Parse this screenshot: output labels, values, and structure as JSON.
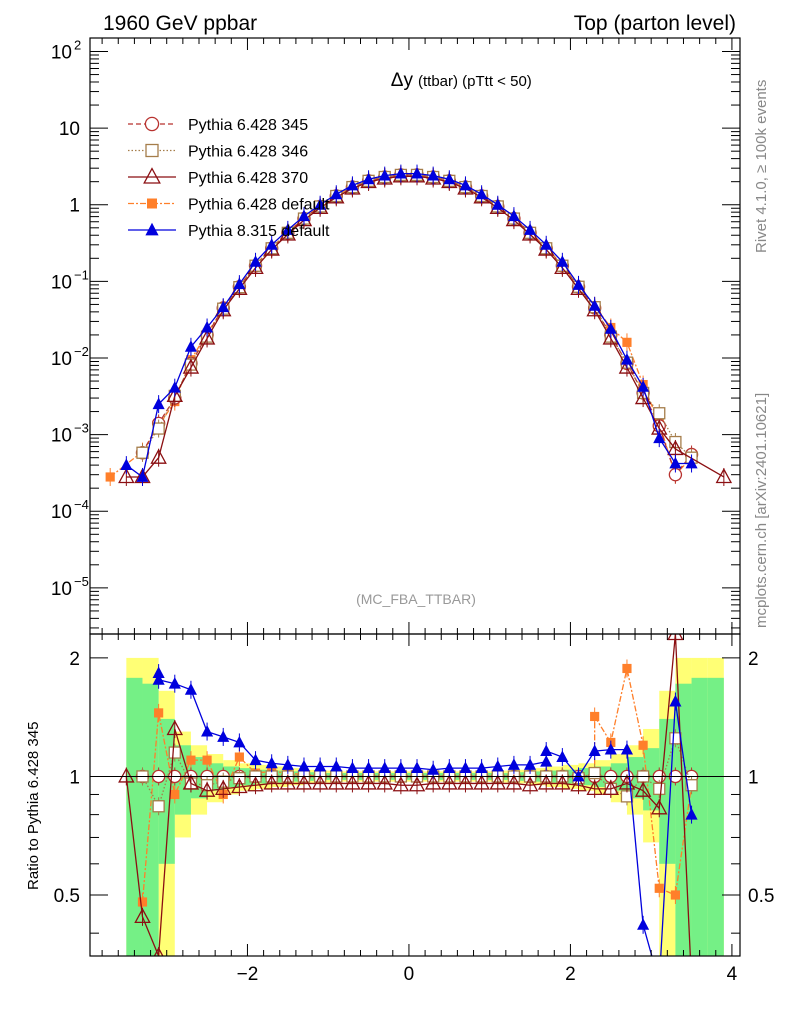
{
  "header": {
    "left_title": "1960 GeV ppbar",
    "right_title": "Top (parton level)"
  },
  "side_labels": {
    "rivet": "Rivet 4.1.0, ≥ 100k events",
    "mcplots": "mcplots.cern.ch [arXiv:2401.10621]"
  },
  "chart_data": {
    "type": "line",
    "title": "Δy (ttbar) (pTtt < 50)",
    "title_main": "Δy",
    "title_sub": "(ttbar) (pTtt < 50)",
    "watermark": "(MC_FBA_TTBAR)",
    "xlabel": "",
    "ylabel": "",
    "ratio_ylabel": "Ratio to Pythia 6.428 345",
    "xlim": [
      -3.95,
      4.1
    ],
    "ylim": [
      2.5e-06,
      150
    ],
    "ylog": true,
    "ratio_ylim": [
      0.35,
      2.3
    ],
    "xticks": [
      -2,
      0,
      2,
      4
    ],
    "xtick_labels": [
      "−2",
      "0",
      "2",
      "4"
    ],
    "yticks": [
      {
        "value": 100,
        "base": "10",
        "exp": "2"
      },
      {
        "value": 10,
        "base": "10",
        "exp": ""
      },
      {
        "value": 1,
        "base": "1",
        "exp": ""
      },
      {
        "value": 0.1,
        "base": "10",
        "exp": "−1"
      },
      {
        "value": 0.01,
        "base": "10",
        "exp": "−2"
      },
      {
        "value": 0.001,
        "base": "10",
        "exp": "−3"
      },
      {
        "value": 0.0001,
        "base": "10",
        "exp": "−4"
      },
      {
        "value": 1e-05,
        "base": "10",
        "exp": "−5"
      }
    ],
    "ratio_yticks": [
      {
        "value": 2,
        "label": "2"
      },
      {
        "value": 1,
        "label": "1"
      },
      {
        "value": 0.5,
        "label": "0.5"
      }
    ],
    "bin_edges": [
      -3.6,
      3.6
    ],
    "bin_width": 0.2,
    "uncertainty_bands": {
      "green": [
        0.0,
        0.78,
        0.72,
        0.4,
        0.2,
        0.12,
        0.08,
        0.06,
        0.05,
        0.04,
        0.035,
        0.03,
        0.025,
        0.02,
        0.02,
        0.02,
        0.02,
        0.02,
        0.02,
        0.02,
        0.02,
        0.02,
        0.02,
        0.02,
        0.02,
        0.025,
        0.03,
        0.035,
        0.04,
        0.05,
        0.06,
        0.08,
        0.12,
        0.18,
        0.4,
        0.72,
        0.78,
        0.78
      ],
      "yellow": [
        0.0,
        1.0,
        1.0,
        0.65,
        0.3,
        0.2,
        0.14,
        0.1,
        0.08,
        0.07,
        0.06,
        0.05,
        0.04,
        0.035,
        0.03,
        0.03,
        0.03,
        0.03,
        0.03,
        0.03,
        0.03,
        0.03,
        0.03,
        0.03,
        0.035,
        0.04,
        0.05,
        0.06,
        0.07,
        0.08,
        0.1,
        0.14,
        0.2,
        0.32,
        0.65,
        1.0,
        1.0,
        1.0
      ]
    },
    "series": [
      {
        "name": "Pythia 6.428 345",
        "color": "#b8322f",
        "marker": "circle-open",
        "dash": "5,3",
        "x": [
          -3.3,
          -3.1,
          -2.9,
          -2.7,
          -2.5,
          -2.3,
          -2.1,
          -1.9,
          -1.7,
          -1.5,
          -1.3,
          -1.1,
          -0.9,
          -0.7,
          -0.5,
          -0.3,
          -0.1,
          0.1,
          0.3,
          0.5,
          0.7,
          0.9,
          1.1,
          1.3,
          1.5,
          1.7,
          1.9,
          2.1,
          2.3,
          2.5,
          2.7,
          2.9,
          3.1,
          3.3,
          3.5
        ],
        "values": [
          0.00058,
          0.0014,
          0.003,
          0.0085,
          0.02,
          0.045,
          0.085,
          0.16,
          0.27,
          0.43,
          0.66,
          0.95,
          1.3,
          1.7,
          2.05,
          2.3,
          2.45,
          2.45,
          2.3,
          2.05,
          1.7,
          1.3,
          0.95,
          0.66,
          0.43,
          0.27,
          0.16,
          0.085,
          0.045,
          0.02,
          0.0085,
          0.0035,
          0.0013,
          0.0003,
          0.00055
        ],
        "ratio": [
          1.0,
          1.0,
          1.0,
          1.0,
          1.0,
          1.0,
          1.0,
          1.0,
          1.0,
          1.0,
          1.0,
          1.0,
          1.0,
          1.0,
          1.0,
          1.0,
          1.0,
          1.0,
          1.0,
          1.0,
          1.0,
          1.0,
          1.0,
          1.0,
          1.0,
          1.0,
          1.0,
          1.0,
          1.0,
          1.0,
          1.0,
          1.0,
          1.0,
          1.0,
          1.0
        ]
      },
      {
        "name": "Pythia 6.428 346",
        "color": "#a57d4a",
        "marker": "square-open",
        "dash": "1.5,2",
        "x": [
          -3.3,
          -3.1,
          -2.9,
          -2.7,
          -2.5,
          -2.3,
          -2.1,
          -1.9,
          -1.7,
          -1.5,
          -1.3,
          -1.1,
          -0.9,
          -0.7,
          -0.5,
          -0.3,
          -0.1,
          0.1,
          0.3,
          0.5,
          0.7,
          0.9,
          1.1,
          1.3,
          1.5,
          1.7,
          1.9,
          2.1,
          2.3,
          2.5,
          2.7,
          2.9,
          3.1,
          3.3,
          3.5
        ],
        "values": [
          0.00058,
          0.0012,
          0.0032,
          0.0082,
          0.019,
          0.044,
          0.084,
          0.16,
          0.27,
          0.43,
          0.66,
          0.95,
          1.3,
          1.7,
          2.05,
          2.3,
          2.45,
          2.45,
          2.3,
          2.05,
          1.7,
          1.3,
          0.95,
          0.66,
          0.43,
          0.27,
          0.16,
          0.085,
          0.046,
          0.019,
          0.0087,
          0.0035,
          0.0019,
          0.0008,
          0.0005
        ],
        "ratio": [
          1.0,
          0.84,
          1.15,
          0.96,
          0.95,
          0.97,
          0.99,
          1.0,
          1.0,
          1.0,
          1.0,
          1.0,
          1.0,
          1.0,
          1.0,
          1.0,
          1.0,
          1.0,
          1.0,
          1.0,
          1.0,
          1.0,
          1.0,
          1.0,
          1.0,
          1.0,
          1.0,
          0.99,
          1.02,
          0.93,
          0.89,
          1.0,
          0.93,
          1.25,
          0.95
        ]
      },
      {
        "name": "Pythia 6.428 370",
        "color": "#8b0f12",
        "marker": "triangle-open",
        "dash": "",
        "x": [
          -3.5,
          -3.3,
          -3.1,
          -2.9,
          -2.7,
          -2.5,
          -2.3,
          -2.1,
          -1.9,
          -1.7,
          -1.5,
          -1.3,
          -1.1,
          -0.9,
          -0.7,
          -0.5,
          -0.3,
          -0.1,
          0.1,
          0.3,
          0.5,
          0.7,
          0.9,
          1.1,
          1.3,
          1.5,
          1.7,
          1.9,
          2.1,
          2.3,
          2.5,
          2.7,
          2.9,
          3.1,
          3.3,
          3.9
        ],
        "values": [
          0.00028,
          0.00028,
          0.0005,
          0.0032,
          0.0075,
          0.018,
          0.042,
          0.08,
          0.15,
          0.26,
          0.41,
          0.63,
          0.91,
          1.25,
          1.63,
          1.98,
          2.2,
          2.35,
          2.35,
          2.2,
          1.98,
          1.63,
          1.25,
          0.91,
          0.63,
          0.41,
          0.26,
          0.15,
          0.08,
          0.042,
          0.018,
          0.0075,
          0.003,
          0.0012,
          0.00065,
          0.00028
        ],
        "ratio": [
          1.0,
          0.44,
          0.35,
          1.32,
          0.96,
          0.92,
          0.93,
          0.94,
          0.95,
          0.96,
          0.96,
          0.96,
          0.96,
          0.96,
          0.96,
          0.96,
          0.96,
          0.95,
          0.95,
          0.96,
          0.96,
          0.96,
          0.96,
          0.96,
          0.96,
          0.95,
          0.96,
          0.96,
          0.95,
          0.93,
          0.93,
          0.96,
          0.92,
          0.83,
          2.3,
          0.3
        ],
        "ratio_x": [
          -3.5,
          -3.3,
          -3.1,
          -2.9,
          -2.7,
          -2.5,
          -2.3,
          -2.1,
          -1.9,
          -1.7,
          -1.5,
          -1.3,
          -1.1,
          -0.9,
          -0.7,
          -0.5,
          -0.3,
          -0.1,
          0.1,
          0.3,
          0.5,
          0.7,
          0.9,
          1.1,
          1.3,
          1.5,
          1.7,
          1.9,
          2.1,
          2.3,
          2.5,
          2.7,
          2.9,
          3.1,
          3.3,
          3.5
        ]
      },
      {
        "name": "Pythia 6.428 default",
        "color": "#ff7f2a",
        "marker": "square-filled",
        "dash": "6,2,2,2",
        "x": [
          -3.7,
          -3.3,
          -3.1,
          -2.9,
          -2.7,
          -2.5,
          -2.3,
          -2.1,
          -1.9,
          -1.7,
          -1.5,
          -1.3,
          -1.1,
          -0.9,
          -0.7,
          -0.5,
          -0.3,
          -0.1,
          0.1,
          0.3,
          0.5,
          0.7,
          0.9,
          1.1,
          1.3,
          1.5,
          1.7,
          1.9,
          2.1,
          2.3,
          2.5,
          2.7,
          2.9,
          3.1,
          3.3,
          3.5
        ],
        "values": [
          0.00028,
          0.0006,
          0.0013,
          0.0027,
          0.0095,
          0.021,
          0.044,
          0.086,
          0.165,
          0.275,
          0.44,
          0.67,
          0.96,
          1.31,
          1.71,
          2.06,
          2.31,
          2.46,
          2.46,
          2.31,
          2.06,
          1.71,
          1.31,
          0.96,
          0.67,
          0.44,
          0.275,
          0.165,
          0.085,
          0.048,
          0.025,
          0.016,
          0.0045,
          0.0014,
          0.0003,
          0.0005
        ],
        "ratio": [
          0.48,
          1.45,
          0.9,
          1.1,
          1.1,
          0.9,
          1.12,
          1.02,
          1.03,
          1.02,
          1.01,
          1.0,
          1.0,
          1.0,
          1.0,
          1.0,
          1.0,
          1.0,
          1.0,
          1.0,
          1.0,
          1.0,
          1.0,
          1.0,
          1.0,
          1.0,
          1.0,
          1.0,
          1.0,
          1.42,
          1.22,
          1.88,
          1.2,
          0.52,
          0.5,
          0.95
        ],
        "ratio_x": [
          -3.3,
          -3.1,
          -2.9,
          -2.7,
          -2.5,
          -2.3,
          -2.1,
          -1.9,
          -1.7,
          -1.5,
          -1.3,
          -1.1,
          -0.9,
          -0.7,
          -0.5,
          -0.3,
          -0.1,
          0.1,
          0.3,
          0.5,
          0.7,
          0.9,
          1.1,
          1.3,
          1.5,
          1.7,
          1.9,
          2.1,
          2.3,
          2.3,
          2.5,
          2.7,
          2.9,
          3.1,
          3.3,
          3.5
        ]
      },
      {
        "name": "Pythia 8.315 default",
        "color": "#0000dd",
        "marker": "triangle-filled",
        "dash": "",
        "x": [
          -3.5,
          -3.3,
          -3.1,
          -2.9,
          -2.7,
          -2.5,
          -2.3,
          -2.1,
          -1.9,
          -1.7,
          -1.5,
          -1.3,
          -1.1,
          -0.9,
          -0.7,
          -0.5,
          -0.3,
          -0.1,
          0.1,
          0.3,
          0.5,
          0.7,
          0.9,
          1.1,
          1.3,
          1.5,
          1.7,
          1.9,
          2.1,
          2.3,
          2.5,
          2.7,
          2.9,
          3.1,
          3.3,
          3.5
        ],
        "values": [
          0.0004,
          0.00028,
          0.0025,
          0.0041,
          0.014,
          0.025,
          0.046,
          0.092,
          0.18,
          0.3,
          0.47,
          0.71,
          1.0,
          1.37,
          1.79,
          2.15,
          2.4,
          2.55,
          2.55,
          2.4,
          2.15,
          1.79,
          1.37,
          1.0,
          0.71,
          0.47,
          0.3,
          0.18,
          0.09,
          0.048,
          0.024,
          0.0095,
          0.0042,
          0.0009,
          0.00042,
          0.00042
        ],
        "ratio": [
          1.83,
          1.76,
          1.72,
          1.66,
          1.3,
          1.26,
          1.22,
          1.1,
          1.08,
          1.07,
          1.06,
          1.06,
          1.06,
          1.05,
          1.05,
          1.05,
          1.05,
          1.05,
          1.04,
          1.05,
          1.05,
          1.05,
          1.06,
          1.07,
          1.07,
          1.09,
          1.16,
          1.12,
          1.0,
          1.16,
          1.17,
          1.17,
          0.42,
          0.3,
          1.55,
          0.8
        ],
        "ratio_x": [
          -3.1,
          -3.1,
          -2.9,
          -2.7,
          -2.5,
          -2.3,
          -2.1,
          -1.9,
          -1.7,
          -1.5,
          -1.3,
          -1.1,
          -0.9,
          -0.7,
          -0.5,
          -0.3,
          -0.1,
          0.1,
          0.3,
          0.5,
          0.7,
          0.9,
          1.1,
          1.3,
          1.5,
          1.7,
          1.7,
          1.9,
          2.1,
          2.3,
          2.5,
          2.7,
          2.9,
          3.1,
          3.3,
          3.5
        ]
      }
    ]
  }
}
